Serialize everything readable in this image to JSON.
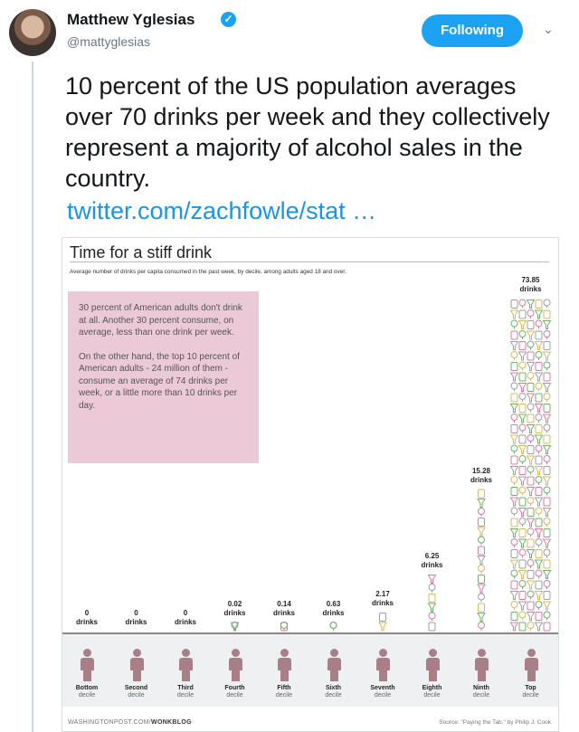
{
  "author": {
    "name": "Matthew Yglesias",
    "handle": "@mattyglesias",
    "verified_glyph": "✓"
  },
  "actions": {
    "follow_label": "Following",
    "caret_glyph": "⌄"
  },
  "tweet": {
    "text": "10 percent of the US population averages over 70 drinks per week and they collectively represent a majority of alcohol sales in the country.",
    "link": "twitter.com/zachfowle/stat …"
  },
  "card": {
    "title": "Time for a stiff drink",
    "subtitle": "Average number of drinks per capita consumed in the past week, by decile, among adults aged 18 and over.",
    "note_p1": "30 percent of American adults don't drink at all. Another 30 percent consume, on average, less than one drink per week.",
    "note_p2": "On the other hand, the top 10 percent of American adults - 24 million of them - consume an average of 74 drinks per week, or a little more than 10 drinks per day.",
    "footer_site": "WASHINGTONPOST.COM/",
    "footer_blog": "WONKBLOG",
    "footer_source": "Source: \"Paying the Tab,\" by Philip J. Cook"
  },
  "chart_data": {
    "type": "bar",
    "title": "Time for a stiff drink",
    "subtitle": "Average number of drinks per capita consumed in the past week, by decile, among adults aged 18 and over.",
    "categories": [
      "Bottom",
      "Second",
      "Third",
      "Fourth",
      "Fifth",
      "Sixth",
      "Seventh",
      "Eighth",
      "Ninth",
      "Top"
    ],
    "category_sublabel": "decile",
    "values": [
      0,
      0,
      0,
      0.02,
      0.14,
      0.63,
      2.17,
      6.25,
      15.28,
      73.85
    ],
    "value_labels": [
      "0",
      "0",
      "0",
      "0.02",
      "0.14",
      "0.63",
      "2.17",
      "6.25",
      "15.28",
      "73.85"
    ],
    "unit_label": "drinks",
    "colors": {
      "pink": "#d97aa3",
      "green": "#6fb06a",
      "yellow": "#d9b75a",
      "grey": "#9aa0a6",
      "person": "#a87f86"
    }
  }
}
